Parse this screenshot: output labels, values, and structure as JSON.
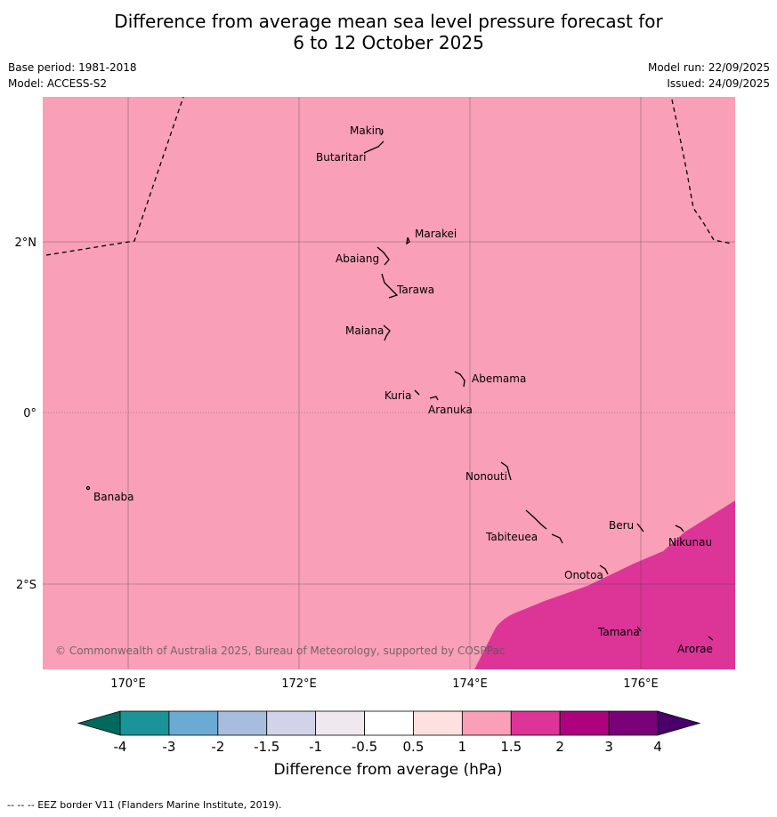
{
  "title_line1": "Difference from average mean sea level pressure forecast for",
  "title_line2": "6 to 12 October 2025",
  "base_period": "Base period: 1981-2018",
  "model": "Model: ACCESS-S2",
  "model_run": "Model run: 22/09/2025",
  "issued": "Issued: 24/09/2025",
  "copyright": "© Commonwealth of Australia 2025, Bureau of Meteorology, supported by COSPPac",
  "footnote": "--  --  -- EEZ border V11 (Flanders Marine Institute, 2019).",
  "axes": {
    "lon_labels": [
      "170°E",
      "172°E",
      "174°E",
      "176°E"
    ],
    "lat_labels": [
      "2°N",
      "0°",
      "2°S"
    ]
  },
  "places": [
    "Makin",
    "Butaritari",
    "Marakei",
    "Abaiang",
    "Tarawa",
    "Maiana",
    "Abemama",
    "Kuria",
    "Aranuka",
    "Nonouti",
    "Banaba",
    "Tabiteuea",
    "Beru",
    "Nikunau",
    "Onotoa",
    "Tamana",
    "Arorae"
  ],
  "colorbar": {
    "title": "Difference from average (hPa)",
    "ticks": [
      "-4",
      "-3",
      "-2",
      "-1.5",
      "-1",
      "-0.5",
      "0.5",
      "1",
      "1.5",
      "2",
      "3",
      "4"
    ],
    "colors": {
      "below": "#00695c",
      "bins": [
        "#1b9499",
        "#6aabd3",
        "#a8bddd",
        "#d2d3e8",
        "#efe9ef",
        "#ffffff",
        "#fde0df",
        "#f99fb7",
        "#dd3497",
        "#ae017e",
        "#7a0177"
      ],
      "above": "#49006a"
    }
  },
  "colors": {
    "field_1_to_1_5": "#f99fb7",
    "field_1_5_to_2": "#dd3497"
  }
}
